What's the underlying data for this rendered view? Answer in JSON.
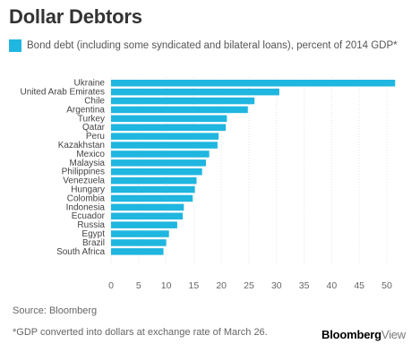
{
  "chart_data": {
    "type": "bar",
    "orientation": "horizontal",
    "title": "Dollar Debtors",
    "legend": "Bond debt (including some syndicated and bilateral loans), percent of 2014 GDP*",
    "categories": [
      "Ukraine",
      "United Arab Emirates",
      "Chile",
      "Argentina",
      "Turkey",
      "Qatar",
      "Peru",
      "Kazakhstan",
      "Mexico",
      "Malaysia",
      "Philippines",
      "Venezuela",
      "Hungary",
      "Colombia",
      "Indonesia",
      "Ecuador",
      "Russia",
      "Egypt",
      "Brazil",
      "South Africa"
    ],
    "values": [
      51.5,
      30.5,
      26,
      24.8,
      21,
      20.8,
      19.5,
      19.3,
      17.8,
      17.2,
      16.5,
      15.5,
      15.2,
      14.8,
      13.2,
      13,
      12,
      10.5,
      10,
      9.5
    ],
    "xticks": [
      0,
      5,
      10,
      15,
      20,
      25,
      30,
      35,
      40,
      45,
      50
    ],
    "xlim": [
      0,
      52
    ],
    "grid": true,
    "legend_position": "top-left",
    "color": "#1fb6e0"
  },
  "source": "Source: Bloomberg",
  "footnote": "*GDP converted into dollars at exchange rate of March 26.",
  "logo": {
    "bold": "Bloomberg",
    "light": "View"
  }
}
